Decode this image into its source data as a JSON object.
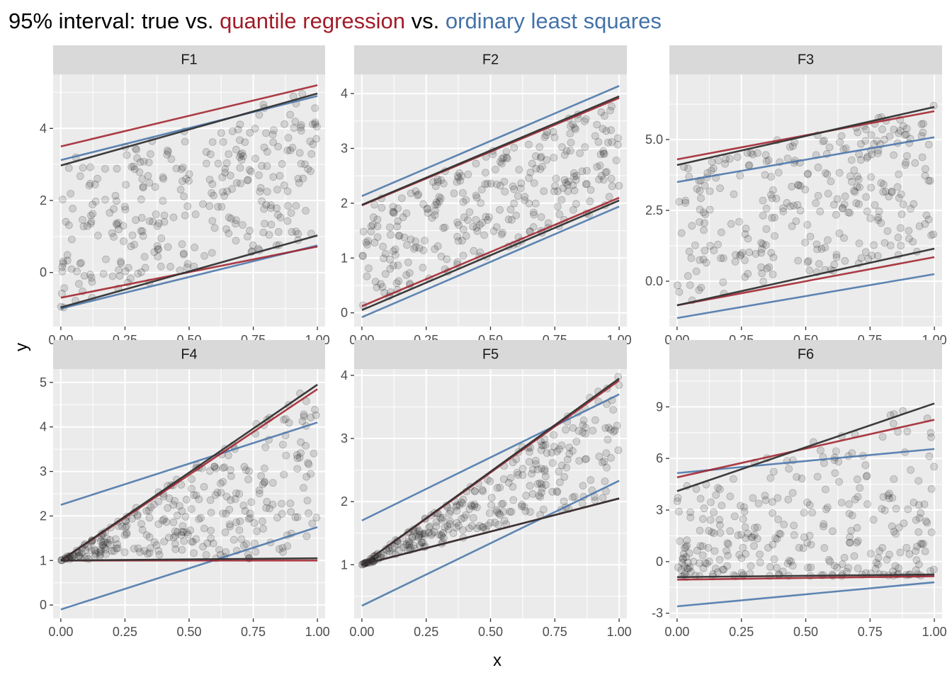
{
  "title": {
    "prefix": "95% interval: true vs. ",
    "quantile": "quantile regression",
    "mid": " vs. ",
    "ols": "ordinary least squares"
  },
  "colors": {
    "true": "#333333",
    "quantile": "#a01c28",
    "ols": "#4472a8"
  },
  "chart_data": {
    "type": "scatter",
    "xlabel": "x",
    "ylabel": "y",
    "grid": true,
    "legend": "none",
    "x_ticks": [
      0,
      0.25,
      0.5,
      0.75,
      1
    ],
    "x_tick_labels": [
      "0.00",
      "0.25",
      "0.50",
      "0.75",
      "1.00"
    ],
    "xlim": [
      -0.03,
      1.03
    ],
    "facets": [
      {
        "name": "F1",
        "ylim": [
          -1.5,
          5.5
        ],
        "y_ticks": [
          0,
          2,
          4
        ],
        "y_tick_labels": [
          "0",
          "2",
          "4"
        ],
        "points": 300,
        "cloud": {
          "lo0": -1.0,
          "lo1": 1.0,
          "hi0": 3.0,
          "hi1": 5.0,
          "shape": 1.0
        },
        "lines": {
          "true": [
            [
              -0.97,
              1.03
            ],
            [
              2.97,
              4.97
            ]
          ],
          "quantile": [
            [
              -0.7,
              0.72
            ],
            [
              3.5,
              5.2
            ]
          ],
          "ols": [
            [
              -1.0,
              0.75
            ],
            [
              3.12,
              4.9
            ]
          ]
        }
      },
      {
        "name": "F2",
        "ylim": [
          -0.25,
          4.35
        ],
        "y_ticks": [
          0,
          1,
          2,
          3,
          4
        ],
        "y_tick_labels": [
          "0",
          "1",
          "2",
          "3",
          "4"
        ],
        "points": 300,
        "cloud": {
          "lo0": 0.1,
          "lo1": 2.0,
          "hi0": 1.9,
          "hi1": 3.9,
          "shape": 1.0
        },
        "lines": {
          "true": [
            [
              0.05,
              2.05
            ],
            [
              1.97,
              3.95
            ]
          ],
          "quantile": [
            [
              0.12,
              2.1
            ],
            [
              1.96,
              3.92
            ]
          ],
          "ols": [
            [
              -0.08,
              1.94
            ],
            [
              2.13,
              4.14
            ]
          ]
        }
      },
      {
        "name": "F3",
        "ylim": [
          -1.6,
          7.3
        ],
        "y_ticks": [
          0,
          2.5,
          5
        ],
        "y_tick_labels": [
          "0.0",
          "2.5",
          "5.0"
        ],
        "points": 300,
        "cloud": {
          "lo0": -0.8,
          "lo1": 1.1,
          "hi0": 4.1,
          "hi1": 6.1,
          "shape": 1.0
        },
        "lines": {
          "true": [
            [
              -0.85,
              1.15
            ],
            [
              4.1,
              6.15
            ]
          ],
          "quantile": [
            [
              -0.85,
              0.85
            ],
            [
              4.3,
              6.0
            ]
          ],
          "ols": [
            [
              -1.3,
              0.25
            ],
            [
              3.5,
              5.08
            ]
          ]
        }
      },
      {
        "name": "F4",
        "ylim": [
          -0.3,
          5.3
        ],
        "y_ticks": [
          0,
          1,
          2,
          3,
          4,
          5
        ],
        "y_tick_labels": [
          "0",
          "1",
          "2",
          "3",
          "4",
          "5"
        ],
        "points": 300,
        "cloud": {
          "lo0": 1.0,
          "lo1": 1.05,
          "hi0": 1.0,
          "hi1": 4.95,
          "shape": 0.9
        },
        "lines": {
          "true": [
            [
              1.0,
              1.05
            ],
            [
              1.0,
              4.95
            ]
          ],
          "quantile": [
            [
              1.0,
              1.0
            ],
            [
              1.0,
              4.85
            ]
          ],
          "ols": [
            [
              -0.1,
              1.75
            ],
            [
              2.25,
              4.1
            ]
          ]
        }
      },
      {
        "name": "F5",
        "ylim": [
          0.15,
          4.1
        ],
        "y_ticks": [
          1,
          2,
          3,
          4
        ],
        "y_tick_labels": [
          "1",
          "2",
          "3",
          "4"
        ],
        "points": 300,
        "cloud": {
          "lo0": 1.0,
          "lo1": 2.05,
          "hi0": 1.0,
          "hi1": 3.95,
          "shape": 0.85
        },
        "lines": {
          "true": [
            [
              1.0,
              2.05
            ],
            [
              1.0,
              3.95
            ]
          ],
          "quantile": [
            [
              1.0,
              2.05
            ],
            [
              1.0,
              3.92
            ]
          ],
          "ols": [
            [
              0.35,
              2.33
            ],
            [
              1.7,
              3.7
            ]
          ]
        }
      },
      {
        "name": "F6",
        "ylim": [
          -3.3,
          11.2
        ],
        "y_ticks": [
          -3,
          0,
          3,
          6,
          9
        ],
        "y_tick_labels": [
          "-3",
          "0",
          "3",
          "6",
          "9"
        ],
        "points": 300,
        "cloud": {
          "lo0": -0.9,
          "lo1": -0.8,
          "hi0": 4.1,
          "hi1": 9.2,
          "shape": 1.7
        },
        "lines": {
          "true": [
            [
              -0.9,
              -0.75
            ],
            [
              4.1,
              9.2
            ]
          ],
          "quantile": [
            [
              -1.05,
              -0.85
            ],
            [
              4.9,
              8.25
            ]
          ],
          "ols": [
            [
              -2.6,
              -1.2
            ],
            [
              5.15,
              6.55
            ]
          ]
        }
      }
    ]
  }
}
